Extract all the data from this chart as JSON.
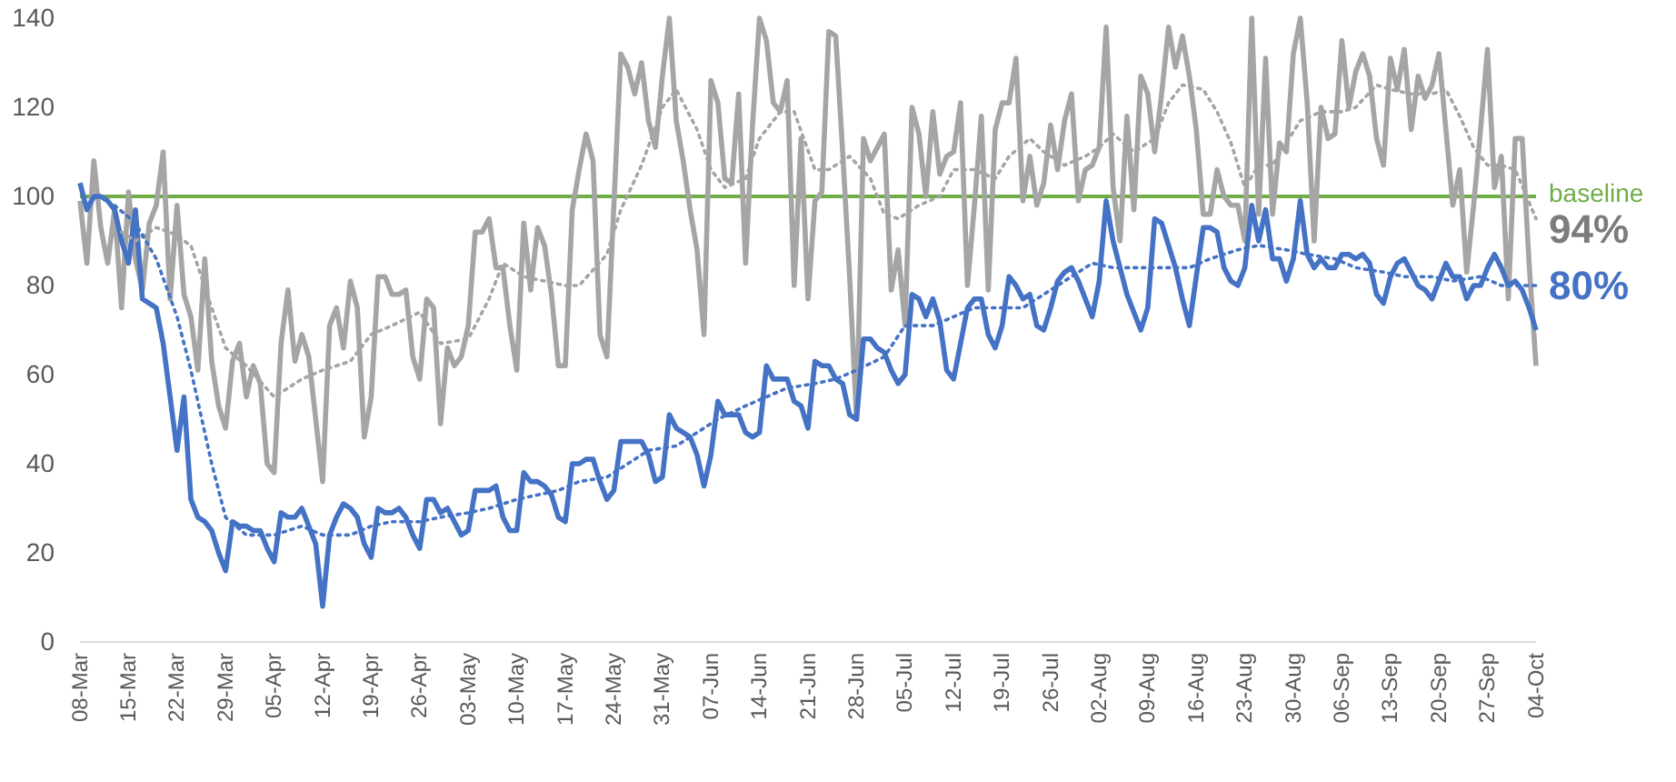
{
  "chart_data": {
    "type": "line",
    "x": [
      "--03-08",
      "--03-09",
      "--03-10",
      "--03-11",
      "--03-12",
      "--03-13",
      "--03-14",
      "--03-15",
      "--03-16",
      "--03-17",
      "--03-18",
      "--03-19",
      "--03-20",
      "--03-21",
      "--03-22",
      "--03-23",
      "--03-24",
      "--03-25",
      "--03-26",
      "--03-27",
      "--03-28",
      "--03-29",
      "--03-30",
      "--03-31",
      "--04-01",
      "--04-02",
      "--04-03",
      "--04-04",
      "--04-05",
      "--04-06",
      "--04-07",
      "--04-08",
      "--04-09",
      "--04-10",
      "--04-11",
      "--04-12",
      "--04-13",
      "--04-14",
      "--04-15",
      "--04-16",
      "--04-17",
      "--04-18",
      "--04-19",
      "--04-20",
      "--04-21",
      "--04-22",
      "--04-23",
      "--04-24",
      "--04-25",
      "--04-26",
      "--04-27",
      "--04-28",
      "--04-29",
      "--04-30",
      "--05-01",
      "--05-02",
      "--05-03",
      "--05-04",
      "--05-05",
      "--05-06",
      "--05-07",
      "--05-08",
      "--05-09",
      "--05-10",
      "--05-11",
      "--05-12",
      "--05-13",
      "--05-14",
      "--05-15",
      "--05-16",
      "--05-17",
      "--05-18",
      "--05-19",
      "--05-20",
      "--05-21",
      "--05-22",
      "--05-23",
      "--05-24",
      "--05-25",
      "--05-26",
      "--05-27",
      "--05-28",
      "--05-29",
      "--05-30",
      "--05-31",
      "--06-01",
      "--06-02",
      "--06-03",
      "--06-04",
      "--06-05",
      "--06-06",
      "--06-07",
      "--06-08",
      "--06-09",
      "--06-10",
      "--06-11",
      "--06-12",
      "--06-13",
      "--06-14",
      "--06-15",
      "--06-16",
      "--06-17",
      "--06-18",
      "--06-19",
      "--06-20",
      "--06-21",
      "--06-22",
      "--06-23",
      "--06-24",
      "--06-25",
      "--06-26",
      "--06-27",
      "--06-28",
      "--06-29",
      "--06-30",
      "--07-01",
      "--07-02",
      "--07-03",
      "--07-04",
      "--07-05",
      "--07-06",
      "--07-07",
      "--07-08",
      "--07-09",
      "--07-10",
      "--07-11",
      "--07-12",
      "--07-13",
      "--07-14",
      "--07-15",
      "--07-16",
      "--07-17",
      "--07-18",
      "--07-19",
      "--07-20",
      "--07-21",
      "--07-22",
      "--07-23",
      "--07-24",
      "--07-25",
      "--07-26",
      "--07-27",
      "--07-28",
      "--07-29",
      "--07-30",
      "--07-31",
      "--08-01",
      "--08-02",
      "--08-03",
      "--08-04",
      "--08-05",
      "--08-06",
      "--08-07",
      "--08-08",
      "--08-09",
      "--08-10",
      "--08-11",
      "--08-12",
      "--08-13",
      "--08-14",
      "--08-15",
      "--08-16",
      "--08-17",
      "--08-18",
      "--08-19",
      "--08-20",
      "--08-21",
      "--08-22",
      "--08-23",
      "--08-24",
      "--08-25",
      "--08-26",
      "--08-27",
      "--08-28",
      "--08-29",
      "--08-30",
      "--08-31",
      "--09-01",
      "--09-02",
      "--09-03",
      "--09-04",
      "--09-05",
      "--09-06",
      "--09-07",
      "--09-08",
      "--09-09",
      "--09-10",
      "--09-11",
      "--09-12",
      "--09-13",
      "--09-14",
      "--09-15",
      "--09-16",
      "--09-17",
      "--09-18",
      "--09-19",
      "--09-20",
      "--09-21",
      "--09-22",
      "--09-23",
      "--09-24",
      "--09-25",
      "--09-26",
      "--09-27",
      "--09-28",
      "--09-29",
      "--09-30",
      "--10-01",
      "--10-02",
      "--10-03",
      "--10-04"
    ],
    "series": [
      {
        "color": "#a5a5a5",
        "line_style": "solid",
        "values": [
          99,
          85,
          108,
          93,
          85,
          97,
          75,
          101,
          86,
          79,
          94,
          98,
          110,
          77,
          98,
          78,
          73,
          61,
          86,
          63,
          53,
          48,
          63,
          67,
          55,
          62,
          58,
          40,
          38,
          67,
          79,
          63,
          69,
          64,
          50,
          36,
          71,
          75,
          66,
          81,
          75,
          46,
          55,
          82,
          82,
          78,
          78,
          79,
          64,
          59,
          77,
          75,
          49,
          66,
          62,
          64,
          71,
          92,
          92,
          95,
          84,
          84,
          71,
          61,
          94,
          79,
          93,
          89,
          78,
          62,
          62,
          97,
          106,
          114,
          108,
          69,
          64,
          98,
          132,
          129,
          123,
          130,
          117,
          111,
          127,
          140,
          117,
          108,
          97,
          88,
          69,
          126,
          121,
          104,
          103,
          123,
          85,
          116,
          140,
          135,
          121,
          119,
          126,
          80,
          113,
          77,
          99,
          101,
          137,
          136,
          110,
          82,
          50,
          113,
          108,
          111,
          114,
          79,
          88,
          71,
          120,
          114,
          100,
          119,
          105,
          109,
          110,
          121,
          80,
          98,
          118,
          79,
          115,
          121,
          121,
          131,
          99,
          109,
          98,
          103,
          116,
          106,
          117,
          123,
          99,
          106,
          107,
          111,
          138,
          102,
          90,
          118,
          97,
          127,
          123,
          110,
          123,
          138,
          129,
          136,
          127,
          115,
          96,
          96,
          106,
          100,
          98,
          98,
          90,
          140,
          96,
          131,
          96,
          112,
          110,
          132,
          140,
          121,
          90,
          120,
          113,
          114,
          135,
          120,
          128,
          132,
          127,
          113,
          107,
          131,
          124,
          133,
          115,
          127,
          122,
          125,
          132,
          115,
          98,
          106,
          83,
          98,
          115,
          133,
          102,
          109,
          77,
          113,
          113,
          85,
          62
        ]
      },
      {
        "color": "#4472c4",
        "line_style": "solid",
        "values": [
          103,
          97,
          100,
          100,
          99,
          97,
          90,
          85,
          97,
          77,
          76,
          75,
          67,
          55,
          43,
          55,
          32,
          28,
          27,
          25,
          20,
          16,
          27,
          26,
          26,
          25,
          25,
          21,
          18,
          29,
          28,
          28,
          30,
          26,
          22,
          8,
          24,
          28,
          31,
          30,
          28,
          22,
          19,
          30,
          29,
          29,
          30,
          28,
          24,
          21,
          32,
          32,
          29,
          30,
          27,
          24,
          25,
          34,
          34,
          34,
          35,
          28,
          25,
          25,
          38,
          36,
          36,
          35,
          33,
          28,
          27,
          40,
          40,
          41,
          41,
          36,
          32,
          34,
          45,
          45,
          45,
          45,
          42,
          36,
          37,
          51,
          48,
          47,
          46,
          42,
          35,
          42,
          54,
          51,
          51,
          51,
          47,
          46,
          47,
          62,
          59,
          59,
          59,
          54,
          53,
          48,
          63,
          62,
          62,
          59,
          58,
          51,
          50,
          68,
          68,
          66,
          65,
          61,
          58,
          60,
          78,
          77,
          73,
          77,
          72,
          61,
          59,
          67,
          75,
          77,
          77,
          69,
          66,
          71,
          82,
          80,
          77,
          78,
          71,
          70,
          75,
          81,
          83,
          84,
          81,
          77,
          73,
          81,
          99,
          90,
          84,
          78,
          74,
          70,
          75,
          95,
          94,
          89,
          84,
          77,
          71,
          82,
          93,
          93,
          92,
          84,
          81,
          80,
          84,
          98,
          90,
          97,
          86,
          86,
          81,
          86,
          99,
          87,
          84,
          86,
          84,
          84,
          87,
          87,
          86,
          87,
          85,
          78,
          76,
          82,
          85,
          86,
          83,
          80,
          79,
          77,
          81,
          85,
          82,
          82,
          77,
          80,
          80,
          84,
          87,
          84,
          80,
          81,
          79,
          75,
          70
        ]
      },
      {
        "name": "94%",
        "color": "#a5a5a5",
        "line_style": "dotted",
        "x": [
          "--03-14",
          "--03-16",
          "--03-19",
          "--03-21",
          "--03-24",
          "--03-27",
          "--03-29",
          "--04-01",
          "--04-05",
          "--04-09",
          "--04-12",
          "--04-16",
          "--04-19",
          "--04-22",
          "--04-26",
          "--04-29",
          "--05-03",
          "--05-06",
          "--05-08",
          "--05-11",
          "--05-14",
          "--05-17",
          "--05-19",
          "--05-23",
          "--05-25",
          "--05-28",
          "--05-31",
          "--06-02",
          "--06-05",
          "--06-07",
          "--06-09",
          "--06-12",
          "--06-14",
          "--06-17",
          "--06-19",
          "--06-22",
          "--06-24",
          "--06-27",
          "--06-30",
          "--07-02",
          "--07-04",
          "--07-07",
          "--07-10",
          "--07-12",
          "--07-15",
          "--07-18",
          "--07-20",
          "--07-23",
          "--07-25",
          "--07-28",
          "--07-31",
          "--08-02",
          "--08-04",
          "--08-07",
          "--08-10",
          "--08-12",
          "--08-14",
          "--08-17",
          "--08-19",
          "--08-21",
          "--08-23",
          "--08-25",
          "--08-27",
          "--08-29",
          "--08-31",
          "--09-03",
          "--09-06",
          "--09-08",
          "--09-11",
          "--09-13",
          "--09-16",
          "--09-19",
          "--09-21",
          "--09-23",
          "--09-25",
          "--09-27",
          "--09-29",
          "--10-01",
          "--10-04"
        ],
        "values": [
          92,
          90,
          93,
          92,
          89,
          75,
          66,
          62,
          55,
          59,
          61,
          63,
          69,
          71,
          74,
          67,
          68,
          77,
          85,
          82,
          81,
          80,
          80,
          87,
          97,
          107,
          120,
          124,
          115,
          106,
          102,
          104,
          113,
          119,
          119,
          106,
          106,
          109,
          104,
          96,
          95,
          98,
          100,
          106,
          106,
          104,
          109,
          113,
          110,
          107,
          109,
          111,
          114,
          110,
          113,
          121,
          125,
          124,
          119,
          112,
          102,
          107,
          107,
          112,
          117,
          119,
          119,
          120,
          125,
          124,
          123,
          123,
          124,
          118,
          111,
          107,
          107,
          106,
          95
        ]
      },
      {
        "name": "80%",
        "color": "#4472c4",
        "line_style": "dotted",
        "x": [
          "--03-13",
          "--03-16",
          "--03-19",
          "--03-22",
          "--03-24",
          "--03-27",
          "--03-29",
          "--04-01",
          "--04-05",
          "--04-09",
          "--04-12",
          "--04-16",
          "--04-19",
          "--04-22",
          "--04-26",
          "--04-29",
          "--05-03",
          "--05-06",
          "--05-10",
          "--05-13",
          "--05-16",
          "--05-19",
          "--05-23",
          "--05-26",
          "--05-29",
          "--06-02",
          "--06-05",
          "--06-08",
          "--06-12",
          "--06-15",
          "--06-18",
          "--06-22",
          "--06-25",
          "--06-28",
          "--07-02",
          "--07-05",
          "--07-09",
          "--07-12",
          "--07-15",
          "--07-19",
          "--07-22",
          "--07-26",
          "--07-29",
          "--08-01",
          "--08-04",
          "--08-08",
          "--08-11",
          "--08-15",
          "--08-18",
          "--08-22",
          "--08-25",
          "--08-29",
          "--09-01",
          "--09-05",
          "--09-08",
          "--09-12",
          "--09-15",
          "--09-19",
          "--09-22",
          "--09-26",
          "--09-29",
          "--10-01",
          "--10-04"
        ],
        "values": [
          98,
          94,
          86,
          73,
          61,
          40,
          28,
          24,
          24,
          26,
          24,
          24,
          26,
          27,
          27,
          28,
          29,
          30,
          32,
          33,
          34,
          36,
          37,
          40,
          43,
          44,
          47,
          50,
          53,
          55,
          57,
          58,
          59,
          61,
          64,
          71,
          71,
          73,
          75,
          75,
          75,
          79,
          82,
          85,
          84,
          84,
          84,
          84,
          86,
          88,
          89,
          88,
          87,
          86,
          84,
          83,
          82,
          82,
          81,
          82,
          80,
          80,
          80
        ]
      }
    ],
    "ylim": [
      0,
      140
    ],
    "yticks": [
      0,
      20,
      40,
      60,
      80,
      100,
      120,
      140
    ],
    "xlim": [
      "--03-08",
      "--10-04"
    ],
    "xticks": [
      {
        "value": "--03-08",
        "label": "08-Mar"
      },
      {
        "value": "--03-15",
        "label": "15-Mar"
      },
      {
        "value": "--03-22",
        "label": "22-Mar"
      },
      {
        "value": "--03-29",
        "label": "29-Mar"
      },
      {
        "value": "--04-05",
        "label": "05-Apr"
      },
      {
        "value": "--04-12",
        "label": "12-Apr"
      },
      {
        "value": "--04-19",
        "label": "19-Apr"
      },
      {
        "value": "--04-26",
        "label": "26-Apr"
      },
      {
        "value": "--05-03",
        "label": "03-May"
      },
      {
        "value": "--05-10",
        "label": "10-May"
      },
      {
        "value": "--05-17",
        "label": "17-May"
      },
      {
        "value": "--05-24",
        "label": "24-May"
      },
      {
        "value": "--05-31",
        "label": "31-May"
      },
      {
        "value": "--06-07",
        "label": "07-Jun"
      },
      {
        "value": "--06-14",
        "label": "14-Jun"
      },
      {
        "value": "--06-21",
        "label": "21-Jun"
      },
      {
        "value": "--06-28",
        "label": "28-Jun"
      },
      {
        "value": "--07-05",
        "label": "05-Jul"
      },
      {
        "value": "--07-12",
        "label": "12-Jul"
      },
      {
        "value": "--07-19",
        "label": "19-Jul"
      },
      {
        "value": "--07-26",
        "label": "26-Jul"
      },
      {
        "value": "--08-02",
        "label": "02-Aug"
      },
      {
        "value": "--08-09",
        "label": "09-Aug"
      },
      {
        "value": "--08-16",
        "label": "16-Aug"
      },
      {
        "value": "--08-23",
        "label": "23-Aug"
      },
      {
        "value": "--08-30",
        "label": "30-Aug"
      },
      {
        "value": "--09-06",
        "label": "06-Sep"
      },
      {
        "value": "--09-13",
        "label": "13-Sep"
      },
      {
        "value": "--09-20",
        "label": "20-Sep"
      },
      {
        "value": "--09-27",
        "label": "27-Sep"
      },
      {
        "value": "--10-04",
        "label": "04-Oct"
      }
    ],
    "ref_lines": [
      {
        "axis": "y",
        "value": 100,
        "label": "baseline",
        "color": "#70ad47"
      }
    ],
    "grid": false,
    "legend": false,
    "marker": "none"
  }
}
